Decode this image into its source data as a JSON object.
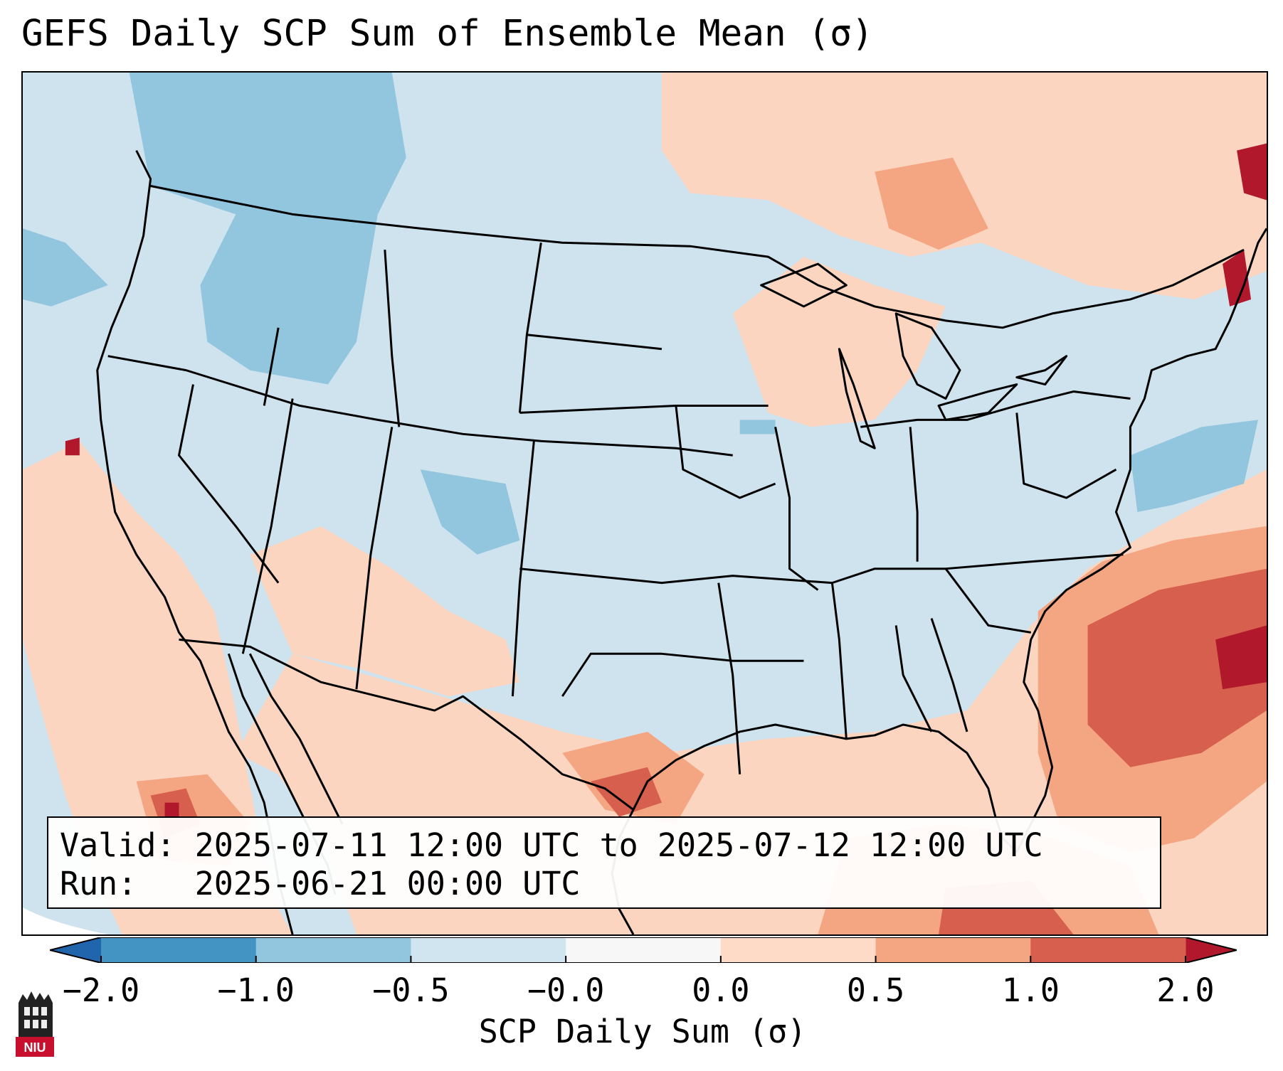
{
  "title": "GEFS Daily SCP Sum of Ensemble Mean (σ)",
  "info": {
    "valid_label": "Valid:",
    "valid_value": "2025-07-11 12:00 UTC to 2025-07-12 12:00 UTC",
    "run_label": "Run:",
    "run_value": "2025-06-21 00:00 UTC"
  },
  "colorbar": {
    "label": "SCP Daily Sum (σ)",
    "ticks": [
      "−2.0",
      "−1.0",
      "−0.5",
      "−0.0",
      "0.0",
      "0.5",
      "1.0",
      "2.0"
    ],
    "bin_colors": [
      "#4393c3",
      "#92c5de",
      "#d1e5f0",
      "#f7f7f7",
      "#fddbc7",
      "#f4a582",
      "#d6604d"
    ],
    "extend_min_color": "#2166ac",
    "extend_max_color": "#b2182b"
  },
  "field_colors": {
    "ocean_low": "#cfe3ef",
    "neg_mid": "#92c5de",
    "pos_low": "#fbd5c0",
    "pos_mid": "#f4a582",
    "pos_high": "#d6604d",
    "pos_max": "#b2182b"
  },
  "logo": {
    "text": "NIU",
    "color": "#c8102e"
  }
}
